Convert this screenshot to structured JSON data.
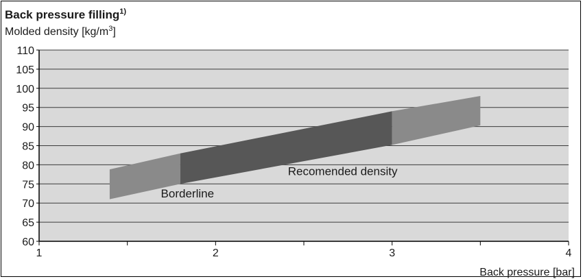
{
  "chart_data": {
    "type": "area",
    "title": "Back pressure filling",
    "title_superscript": "1)",
    "ylabel_text": "Molded density [kg/m",
    "ylabel_superscript": "3",
    "ylabel_suffix": "]",
    "xlabel": "Back pressure [bar]",
    "xlim": [
      1,
      4
    ],
    "ylim": [
      60,
      110
    ],
    "x_ticks": [
      1,
      2,
      3,
      4
    ],
    "y_ticks": [
      60,
      65,
      70,
      75,
      80,
      85,
      90,
      95,
      100,
      105,
      110
    ],
    "grid": "horizontal",
    "bands": [
      {
        "label": "Borderline",
        "color": "#8a8a8a",
        "polygon": [
          [
            1.4,
            71
          ],
          [
            1.8,
            75
          ],
          [
            1.8,
            83
          ],
          [
            1.4,
            78.8
          ]
        ]
      },
      {
        "label": "Recomended density",
        "color": "#575757",
        "polygon": [
          [
            1.8,
            75
          ],
          [
            3.0,
            85.2
          ],
          [
            3.0,
            94
          ],
          [
            1.8,
            83
          ]
        ]
      },
      {
        "label": "",
        "color": "#8a8a8a",
        "polygon": [
          [
            3.0,
            85.2
          ],
          [
            3.5,
            90.3
          ],
          [
            3.5,
            98
          ],
          [
            3.0,
            94
          ]
        ]
      }
    ],
    "annotations": [
      {
        "text": "Recomended density",
        "x": 2.72,
        "y": 77.3,
        "anchor": "middle"
      },
      {
        "text": "Borderline",
        "x": 1.69,
        "y": 71.5,
        "anchor": "start"
      }
    ]
  },
  "colors": {
    "plot_background": "#d9d9d9",
    "grid": "#3a3a3a",
    "axis": "#000000"
  }
}
